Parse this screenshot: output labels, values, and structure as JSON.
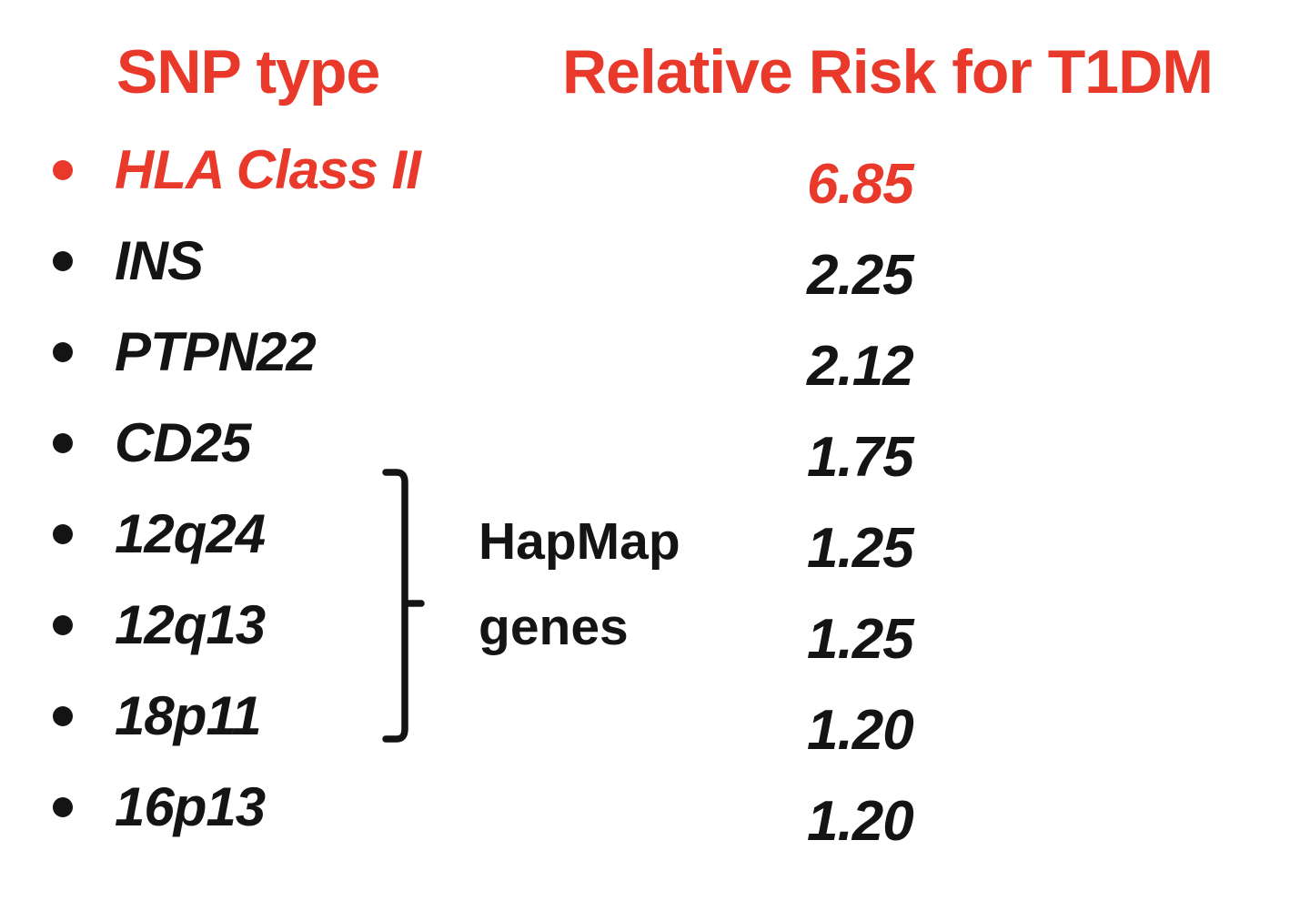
{
  "slide": {
    "background_color": "#ffffff",
    "accent_red": "#e8392b",
    "text_black": "#141414"
  },
  "table": {
    "col1_header": "SNP type",
    "col2_header": "Relative Risk for T1DM",
    "rows": [
      {
        "snp": "HLA Class II",
        "risk": "6.85",
        "highlight": true,
        "hapmap_group": false
      },
      {
        "snp": "INS",
        "risk": "2.25",
        "highlight": false,
        "hapmap_group": false
      },
      {
        "snp": "PTPN22",
        "risk": "2.12",
        "highlight": false,
        "hapmap_group": false
      },
      {
        "snp": "CD25",
        "risk": "1.75",
        "highlight": false,
        "hapmap_group": false
      },
      {
        "snp": "12q24",
        "risk": "1.25",
        "highlight": false,
        "hapmap_group": true
      },
      {
        "snp": "12q13",
        "risk": "1.25",
        "highlight": false,
        "hapmap_group": true
      },
      {
        "snp": "18p11",
        "risk": "1.20",
        "highlight": false,
        "hapmap_group": true
      },
      {
        "snp": "16p13",
        "risk": "1.20",
        "highlight": false,
        "hapmap_group": false
      }
    ],
    "group_annotation": {
      "line1": "HapMap",
      "line2": "genes"
    }
  },
  "chart_data": {
    "type": "table",
    "columns": [
      "SNP type",
      "Relative Risk for T1DM"
    ],
    "rows": [
      [
        "HLA Class II",
        6.85
      ],
      [
        "INS",
        2.25
      ],
      [
        "PTPN22",
        2.12
      ],
      [
        "CD25",
        1.75
      ],
      [
        "12q24",
        1.25
      ],
      [
        "12q13",
        1.25
      ],
      [
        "18p11",
        1.2
      ],
      [
        "16p13",
        1.2
      ]
    ],
    "annotations": [
      {
        "text": "HapMap genes",
        "applies_to": [
          "12q24",
          "12q13",
          "18p11"
        ]
      }
    ],
    "highlighted_row": "HLA Class II",
    "highlight_color": "#e8392b"
  }
}
